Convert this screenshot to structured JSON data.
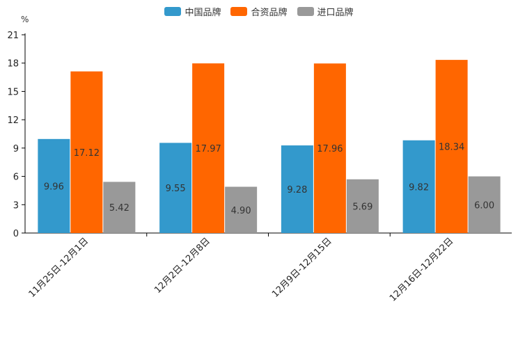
{
  "chart_data": {
    "type": "bar",
    "unit_label": "%",
    "categories": [
      "11月25日-12月1日",
      "12月2日-12月8日",
      "12月9日-12月15日",
      "12月16日-12月22日"
    ],
    "series": [
      {
        "name": "中国品牌",
        "color": "#3399cc",
        "values": [
          9.96,
          9.55,
          9.28,
          9.82
        ],
        "labels": [
          "9.96",
          "9.55",
          "9.28",
          "9.82"
        ]
      },
      {
        "name": "合资品牌",
        "color": "#ff6600",
        "values": [
          17.12,
          17.97,
          17.96,
          18.34
        ],
        "labels": [
          "17.12",
          "17.97",
          "17.96",
          "18.34"
        ]
      },
      {
        "name": "进口品牌",
        "color": "#999999",
        "values": [
          5.42,
          4.9,
          5.69,
          6.0
        ],
        "labels": [
          "5.42",
          "4.90",
          "5.69",
          "6.00"
        ]
      }
    ],
    "yticks": [
      "0",
      "3",
      "6",
      "9",
      "12",
      "15",
      "18",
      "21"
    ],
    "ylim": [
      0,
      21
    ],
    "xlabel": "",
    "ylabel": "%",
    "legend_position": "top-center"
  }
}
